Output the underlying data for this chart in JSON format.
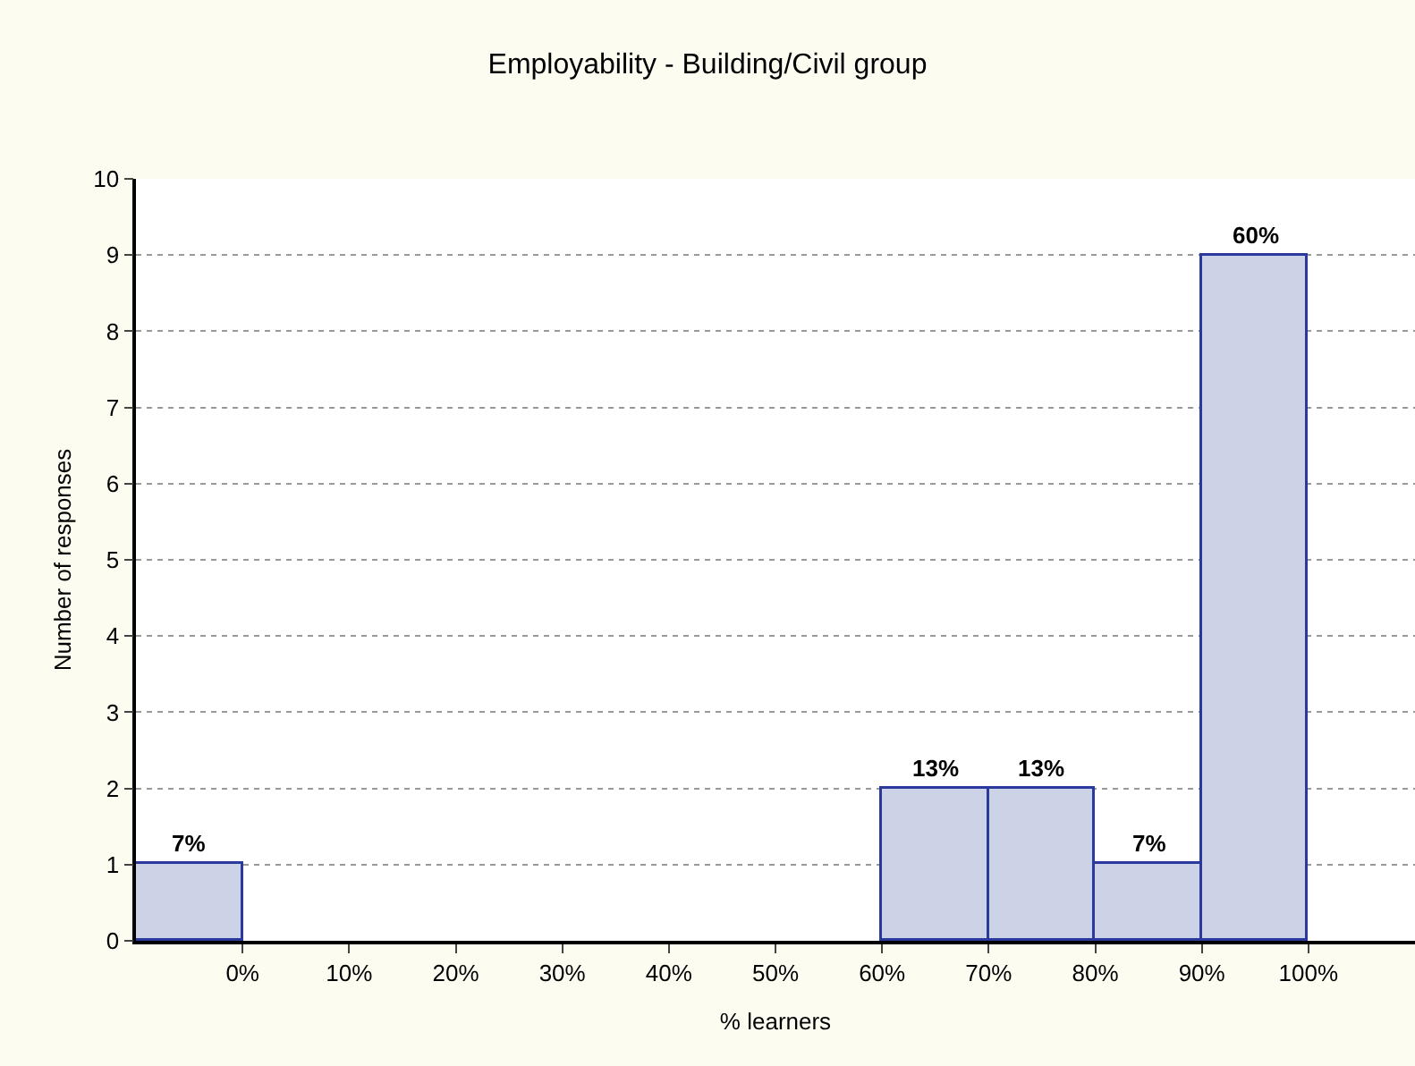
{
  "chart_data": {
    "type": "histogram",
    "title": "Employability - Building/Civil group",
    "xlabel": "% learners",
    "ylabel": "Number of responses",
    "bins": [
      -10,
      0,
      10,
      20,
      30,
      40,
      50,
      60,
      70,
      80,
      90,
      100
    ],
    "values": [
      1,
      0,
      0,
      0,
      0,
      0,
      0,
      2,
      2,
      1,
      9
    ],
    "annotations": [
      {
        "text": "7%",
        "x": -5,
        "y": 1
      },
      {
        "text": "13%",
        "x": 65,
        "y": 2
      },
      {
        "text": "13%",
        "x": 75,
        "y": 2
      },
      {
        "text": "7%",
        "x": 85,
        "y": 1
      },
      {
        "text": "60%",
        "x": 95,
        "y": 9
      }
    ],
    "color": "#cdd3e6",
    "xlim": [
      -10,
      110
    ],
    "xticks": [
      {
        "value": 0,
        "label": "0%"
      },
      {
        "value": 10,
        "label": "10%"
      },
      {
        "value": 20,
        "label": "20%"
      },
      {
        "value": 30,
        "label": "30%"
      },
      {
        "value": 40,
        "label": "40%"
      },
      {
        "value": 50,
        "label": "50%"
      },
      {
        "value": 60,
        "label": "60%"
      },
      {
        "value": 70,
        "label": "70%"
      },
      {
        "value": 80,
        "label": "80%"
      },
      {
        "value": 90,
        "label": "90%"
      },
      {
        "value": 100,
        "label": "100%"
      }
    ],
    "ylim": [
      0,
      10
    ],
    "yticks": [
      0,
      1,
      2,
      3,
      4,
      5,
      6,
      7,
      8,
      9,
      10
    ],
    "grid": "y"
  }
}
